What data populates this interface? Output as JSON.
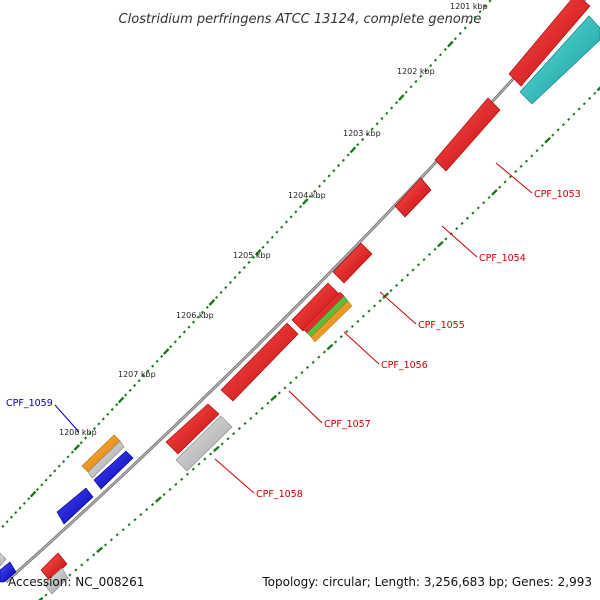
{
  "title": "Clostridium perfringens ATCC 13124, complete genome",
  "footer": {
    "accession": "Accession: NC_008261",
    "topology": "Topology: circular; Length: 3,256,683 bp; Genes: 2,993"
  },
  "ticks": [
    {
      "label": "1201 kbp",
      "muted": true
    },
    {
      "label": "1202 kbp"
    },
    {
      "label": "1203 kbp"
    },
    {
      "label": "1204 kbp"
    },
    {
      "label": "1205 kbp"
    },
    {
      "label": "1206 kbp"
    },
    {
      "label": "1207 kbp"
    },
    {
      "label": "1208 kbp"
    }
  ],
  "genes": [
    {
      "name": "CPF_1053",
      "color": "#cc0000"
    },
    {
      "name": "CPF_1054",
      "color": "#cc0000"
    },
    {
      "name": "CPF_1055",
      "color": "#cc0000"
    },
    {
      "name": "CPF_1056",
      "color": "#cc0000"
    },
    {
      "name": "CPF_1057",
      "color": "#cc0000"
    },
    {
      "name": "CPF_1058",
      "color": "#cc0000"
    },
    {
      "name": "CPF_1059",
      "color": "#0000cc"
    }
  ],
  "colors": {
    "backbone": "#777777",
    "red": "#dd1111",
    "blue": "#1111dd",
    "cyan": "#22bbbb",
    "gray": "#bbbbbb",
    "orange": "#f0950f",
    "green": "#55bb33",
    "tick_green": "#1a7a1a"
  }
}
